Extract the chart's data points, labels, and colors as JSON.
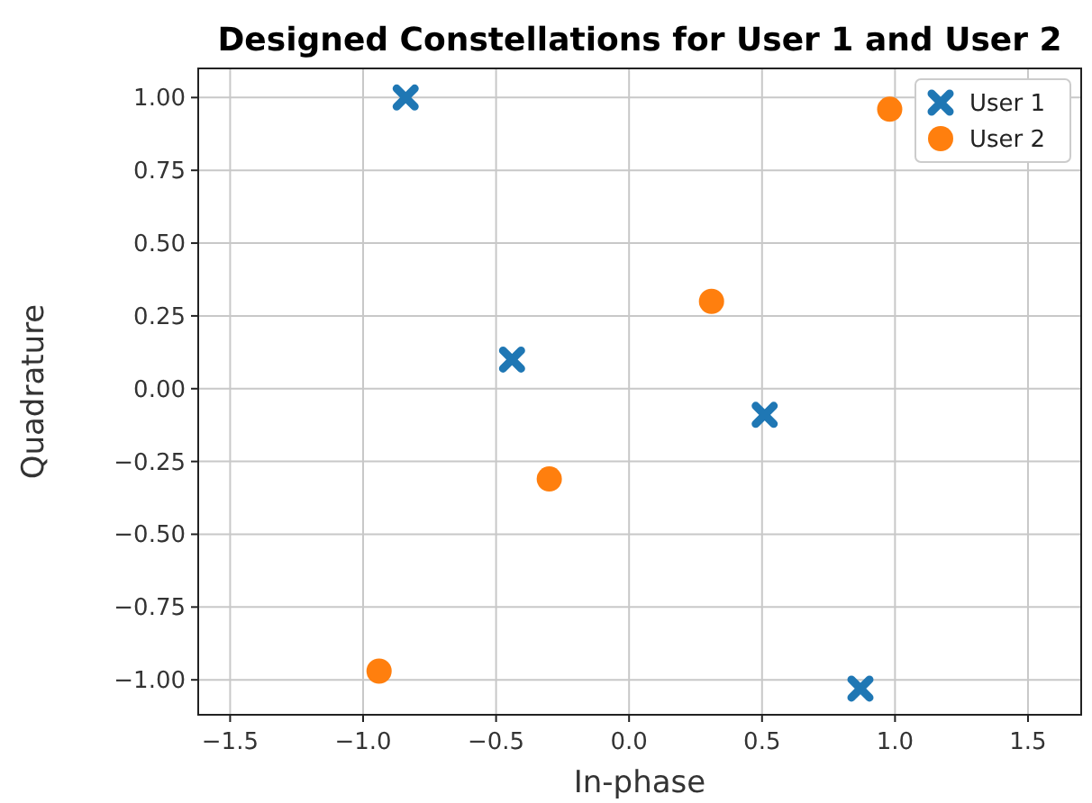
{
  "chart_data": {
    "type": "scatter",
    "title": "Designed Constellations for User 1 and User 2",
    "xlabel": "In-phase",
    "ylabel": "Quadrature",
    "xlim": [
      -1.62,
      1.7
    ],
    "ylim": [
      -1.12,
      1.1
    ],
    "xticks": [
      {
        "value": -1.5,
        "label": "−1.5"
      },
      {
        "value": -1,
        "label": "−1.0"
      },
      {
        "value": -0.5,
        "label": "−0.5"
      },
      {
        "value": 0,
        "label": "0.0"
      },
      {
        "value": 0.5,
        "label": "0.5"
      },
      {
        "value": 1,
        "label": "1.0"
      },
      {
        "value": 1.5,
        "label": "1.5"
      }
    ],
    "yticks": [
      {
        "value": -1,
        "label": "−1.00"
      },
      {
        "value": -0.75,
        "label": "−0.75"
      },
      {
        "value": -0.5,
        "label": "−0.50"
      },
      {
        "value": -0.25,
        "label": "−0.25"
      },
      {
        "value": 0,
        "label": "0.00"
      },
      {
        "value": 0.25,
        "label": "0.25"
      },
      {
        "value": 0.5,
        "label": "0.50"
      },
      {
        "value": 0.75,
        "label": "0.75"
      },
      {
        "value": 1,
        "label": "1.00"
      }
    ],
    "grid": true,
    "legend": "top right",
    "series": [
      {
        "name": "User 1",
        "color": "#1f77b4",
        "marker": "cross",
        "x": [
          -0.84,
          -0.44,
          0.51,
          0.87
        ],
        "values": [
          1.0,
          0.1,
          -0.09,
          -1.03
        ]
      },
      {
        "name": "User 2",
        "color": "#ff7f0e",
        "marker": "circle",
        "x": [
          0.98,
          0.31,
          -0.3,
          -0.94
        ],
        "values": [
          0.96,
          0.3,
          -0.31,
          -0.97
        ]
      }
    ]
  }
}
